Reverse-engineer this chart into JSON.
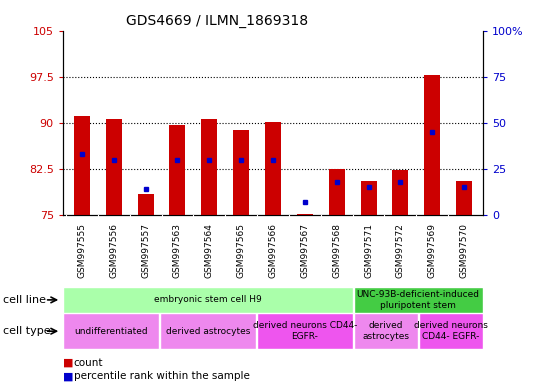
{
  "title": "GDS4669 / ILMN_1869318",
  "samples": [
    "GSM997555",
    "GSM997556",
    "GSM997557",
    "GSM997563",
    "GSM997564",
    "GSM997565",
    "GSM997566",
    "GSM997567",
    "GSM997568",
    "GSM997571",
    "GSM997572",
    "GSM997569",
    "GSM997570"
  ],
  "count_values": [
    91.2,
    90.7,
    78.5,
    89.7,
    90.7,
    88.8,
    90.2,
    75.1,
    82.5,
    80.5,
    82.3,
    97.8,
    80.5
  ],
  "percentile_values": [
    33,
    30,
    14,
    30,
    30,
    30,
    30,
    7,
    18,
    15,
    18,
    45,
    15
  ],
  "ylim_left": [
    75,
    105
  ],
  "ylim_right": [
    0,
    100
  ],
  "yticks_left": [
    75,
    82.5,
    90,
    97.5,
    105
  ],
  "yticks_right": [
    0,
    25,
    50,
    75,
    100
  ],
  "bar_color": "#cc0000",
  "dot_color": "#0000cc",
  "bar_bottom": 75,
  "cell_line_groups": [
    {
      "label": "embryonic stem cell H9",
      "start": 0,
      "end": 8,
      "color": "#aaffaa"
    },
    {
      "label": "UNC-93B-deficient-induced\npluripotent stem",
      "start": 9,
      "end": 12,
      "color": "#44cc44"
    }
  ],
  "cell_type_groups": [
    {
      "label": "undifferentiated",
      "start": 0,
      "end": 2,
      "color": "#ee88ee"
    },
    {
      "label": "derived astrocytes",
      "start": 3,
      "end": 5,
      "color": "#ee88ee"
    },
    {
      "label": "derived neurons CD44-\nEGFR-",
      "start": 6,
      "end": 8,
      "color": "#ee55ee"
    },
    {
      "label": "derived\nastrocytes",
      "start": 9,
      "end": 10,
      "color": "#ee88ee"
    },
    {
      "label": "derived neurons\nCD44- EGFR-",
      "start": 11,
      "end": 12,
      "color": "#ee55ee"
    }
  ],
  "bg_color": "#cccccc",
  "left_label_color": "#cc0000",
  "right_label_color": "#0000cc"
}
